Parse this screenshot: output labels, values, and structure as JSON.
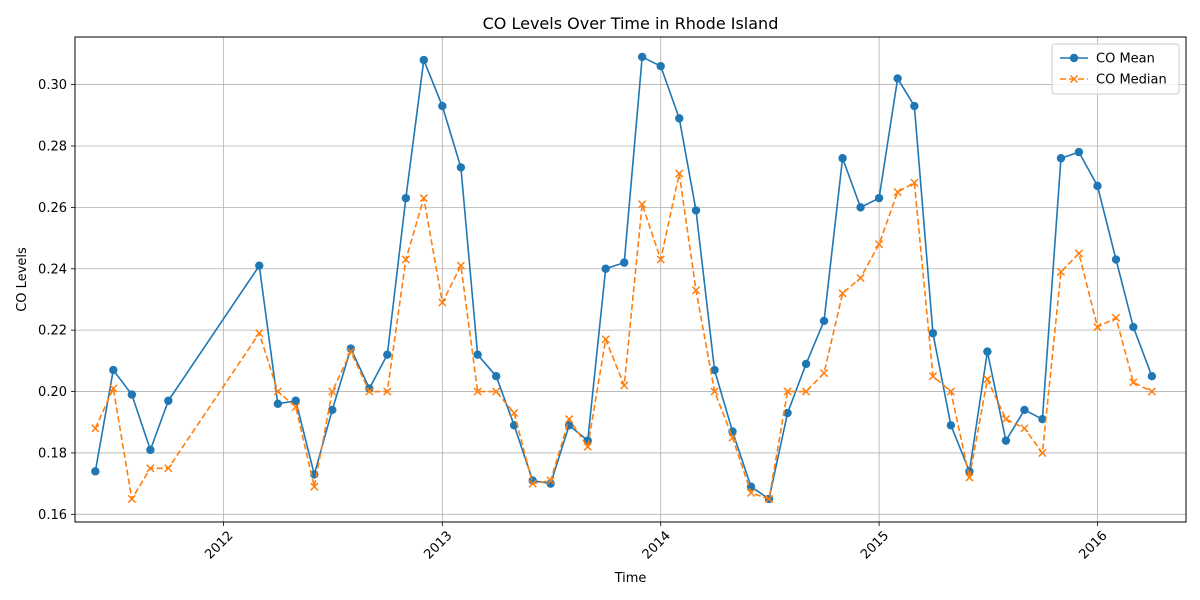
{
  "chart_data": {
    "type": "line",
    "title": "CO Levels Over Time in Rhode Island",
    "xlabel": "Time",
    "ylabel": "CO Levels",
    "x_range": [
      "2011-04-28",
      "2016-05-28"
    ],
    "ylim": [
      0.1575,
      0.3155
    ],
    "x_tick_labels": [
      "2012",
      "2013",
      "2014",
      "2015",
      "2016"
    ],
    "x_tick_dates": [
      "2012-01-01",
      "2013-01-01",
      "2014-01-01",
      "2015-01-01",
      "2016-01-01"
    ],
    "x_tick_rotation": 45,
    "y_ticks": [
      "0.16",
      "0.18",
      "0.20",
      "0.22",
      "0.24",
      "0.26",
      "0.28",
      "0.30"
    ],
    "grid": true,
    "legend_position": "top-right",
    "x": [
      "2011-06-01",
      "2011-07-01",
      "2011-08-01",
      "2011-09-01",
      "2011-10-01",
      "2012-03-01",
      "2012-04-01",
      "2012-05-01",
      "2012-06-01",
      "2012-07-01",
      "2012-08-01",
      "2012-09-01",
      "2012-10-01",
      "2012-11-01",
      "2012-12-01",
      "2013-01-01",
      "2013-02-01",
      "2013-03-01",
      "2013-04-01",
      "2013-05-01",
      "2013-06-01",
      "2013-07-01",
      "2013-08-01",
      "2013-09-01",
      "2013-10-01",
      "2013-11-01",
      "2013-12-01",
      "2014-01-01",
      "2014-02-01",
      "2014-03-01",
      "2014-04-01",
      "2014-05-01",
      "2014-06-01",
      "2014-07-01",
      "2014-08-01",
      "2014-09-01",
      "2014-10-01",
      "2014-11-01",
      "2014-12-01",
      "2015-01-01",
      "2015-02-01",
      "2015-03-01",
      "2015-04-01",
      "2015-05-01",
      "2015-06-01",
      "2015-07-01",
      "2015-08-01",
      "2015-09-01",
      "2015-10-01",
      "2015-11-01",
      "2015-12-01",
      "2016-01-01",
      "2016-02-01",
      "2016-03-01",
      "2016-04-01"
    ],
    "series": [
      {
        "name": "CO Mean",
        "color": "#1f77b4",
        "marker": "circle",
        "line_style": "solid",
        "values": [
          0.174,
          0.207,
          0.199,
          0.181,
          0.197,
          0.241,
          0.196,
          0.197,
          0.173,
          0.194,
          0.214,
          0.201,
          0.212,
          0.263,
          0.308,
          0.293,
          0.273,
          0.212,
          0.205,
          0.189,
          0.171,
          0.17,
          0.189,
          0.184,
          0.24,
          0.242,
          0.309,
          0.306,
          0.289,
          0.259,
          0.207,
          0.187,
          0.169,
          0.165,
          0.193,
          0.209,
          0.223,
          0.276,
          0.26,
          0.263,
          0.302,
          0.293,
          0.219,
          0.189,
          0.174,
          0.213,
          0.184,
          0.194,
          0.191,
          0.276,
          0.278,
          0.267,
          0.243,
          0.221,
          0.205
        ]
      },
      {
        "name": "CO Median",
        "color": "#ff7f0e",
        "marker": "x",
        "line_style": "dashed",
        "values": [
          0.188,
          0.201,
          0.165,
          0.175,
          0.175,
          0.219,
          0.2,
          0.195,
          0.169,
          0.2,
          0.213,
          0.2,
          0.2,
          0.243,
          0.263,
          0.229,
          0.241,
          0.2,
          0.2,
          0.193,
          0.17,
          0.171,
          0.191,
          0.182,
          0.217,
          0.202,
          0.261,
          0.243,
          0.271,
          0.233,
          0.2,
          0.185,
          0.167,
          0.165,
          0.2,
          0.2,
          0.206,
          0.232,
          0.237,
          0.248,
          0.265,
          0.268,
          0.205,
          0.2,
          0.172,
          0.204,
          0.191,
          0.188,
          0.18,
          0.239,
          0.245,
          0.221,
          0.224,
          0.203,
          0.2
        ]
      }
    ]
  }
}
